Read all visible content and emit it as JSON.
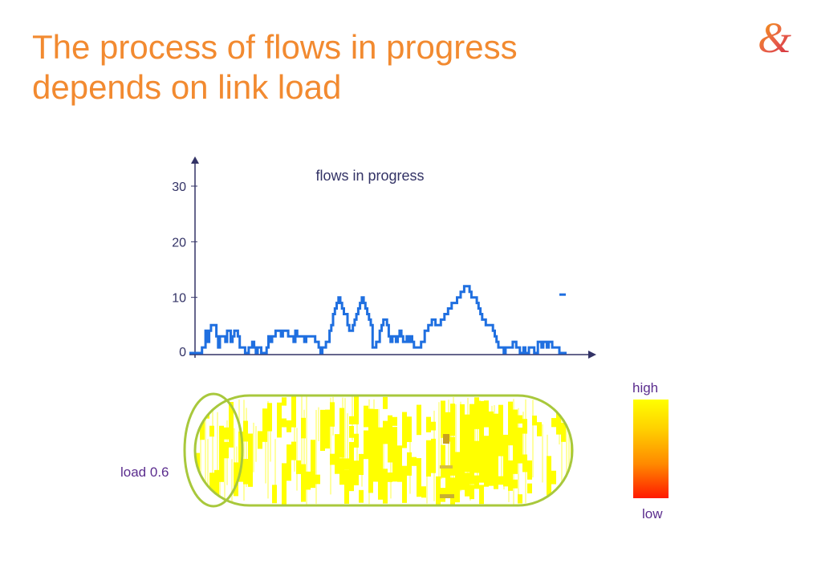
{
  "slide": {
    "title_line1": "The process of flows in progress",
    "title_line2": "depends on link load",
    "logo_icon": "ampersand-logo-icon"
  },
  "chart_data": {
    "type": "line",
    "title": "flows in progress",
    "xlabel": "",
    "ylabel": "",
    "ylim": [
      0,
      30
    ],
    "yticks": [
      0,
      10,
      20,
      30
    ],
    "grid": false,
    "line_color": "#1f6fe0",
    "series": [
      {
        "values": [
          0,
          0,
          0,
          0,
          0,
          0,
          0,
          1,
          1,
          4,
          2,
          4,
          5,
          5,
          5,
          3,
          1,
          3,
          3,
          3,
          2,
          4,
          4,
          2,
          3,
          4,
          4,
          3,
          1,
          1,
          1,
          0,
          0,
          1,
          1,
          2,
          1,
          0,
          1,
          1,
          0,
          0,
          0,
          1,
          3,
          2,
          3,
          3,
          4,
          4,
          4,
          3,
          4,
          4,
          4,
          3,
          3,
          3,
          2,
          4,
          3,
          3,
          3,
          3,
          2,
          3,
          3,
          3,
          3,
          3,
          2,
          2,
          1,
          0,
          1,
          1,
          2,
          2,
          4,
          5,
          7,
          8,
          9,
          10,
          9,
          8,
          7,
          7,
          5,
          4,
          4,
          5,
          6,
          7,
          8,
          9,
          10,
          9,
          8,
          7,
          6,
          5,
          1,
          1,
          2,
          2,
          4,
          5,
          6,
          6,
          5,
          3,
          2,
          3,
          3,
          2,
          3,
          4,
          3,
          2,
          2,
          3,
          2,
          3,
          2,
          1,
          1,
          1,
          1,
          2,
          2,
          4,
          4,
          5,
          5,
          6,
          6,
          5,
          5,
          5,
          6,
          6,
          7,
          7,
          8,
          8,
          9,
          9,
          9,
          10,
          10,
          11,
          11,
          12,
          12,
          12,
          11,
          10,
          10,
          10,
          9,
          8,
          7,
          6,
          6,
          5,
          5,
          5,
          5,
          4,
          3,
          2,
          1,
          1,
          1,
          0,
          1,
          1,
          1,
          1,
          2,
          2,
          1,
          1,
          0,
          0,
          1,
          0,
          0,
          1,
          1,
          1,
          0,
          0,
          2,
          2,
          1,
          2,
          2,
          1,
          2,
          2,
          1,
          1,
          1,
          1,
          0,
          0,
          0,
          0
        ]
      }
    ],
    "outlier_value": 10.5,
    "heatmap": {
      "label": "load 0.6",
      "colorscale": [
        "#ffff00",
        "#ff1a00"
      ],
      "legend_high": "high",
      "legend_low": "low"
    }
  }
}
